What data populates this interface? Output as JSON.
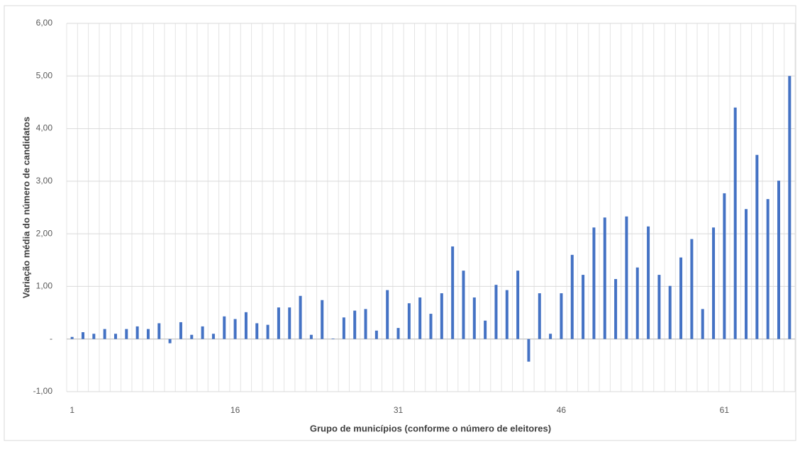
{
  "chart_data": {
    "type": "bar",
    "x_label": "Grupo de municípios (conforme o número de eleitores)",
    "y_label": "Variação média do número de candidatos",
    "categories": [
      1,
      null,
      null,
      null,
      null,
      null,
      null,
      null,
      null,
      null,
      null,
      null,
      null,
      null,
      null,
      16,
      null,
      null,
      null,
      null,
      null,
      null,
      null,
      null,
      null,
      null,
      null,
      null,
      null,
      null,
      31,
      null,
      null,
      null,
      null,
      null,
      null,
      null,
      null,
      null,
      null,
      null,
      null,
      null,
      null,
      46,
      null,
      null,
      null,
      null,
      null,
      null,
      null,
      null,
      null,
      null,
      null,
      null,
      null,
      null,
      61,
      null,
      null,
      null,
      null,
      null,
      null
    ],
    "values": [
      0.04,
      0.13,
      0.1,
      0.19,
      0.1,
      0.19,
      0.24,
      0.19,
      0.3,
      -0.08,
      0.32,
      0.08,
      0.24,
      0.1,
      0.43,
      0.38,
      0.51,
      0.3,
      0.27,
      0.6,
      0.6,
      0.82,
      0.08,
      0.74,
      0.01,
      0.41,
      0.54,
      0.57,
      0.16,
      0.93,
      0.21,
      0.68,
      0.79,
      0.48,
      0.87,
      1.76,
      1.3,
      0.79,
      0.35,
      1.03,
      0.93,
      1.3,
      -0.43,
      0.87,
      0.1,
      0.87,
      1.6,
      1.22,
      2.12,
      2.31,
      1.14,
      2.33,
      1.36,
      2.14,
      1.22,
      1.01,
      1.55,
      1.9,
      0.57,
      2.12,
      2.77,
      4.4,
      2.47,
      3.5,
      2.66,
      3.01,
      5.0
    ],
    "color": "#4472c4",
    "ylim": [
      -1,
      6
    ],
    "yticks": [
      {
        "value": -1,
        "label": "-1,00"
      },
      {
        "value": 0,
        "label": "-"
      },
      {
        "value": 1,
        "label": "1,00"
      },
      {
        "value": 2,
        "label": "2,00"
      },
      {
        "value": 3,
        "label": "3,00"
      },
      {
        "value": 4,
        "label": "4,00"
      },
      {
        "value": 5,
        "label": "5,00"
      },
      {
        "value": 6,
        "label": "6,00"
      }
    ],
    "grid": true
  }
}
